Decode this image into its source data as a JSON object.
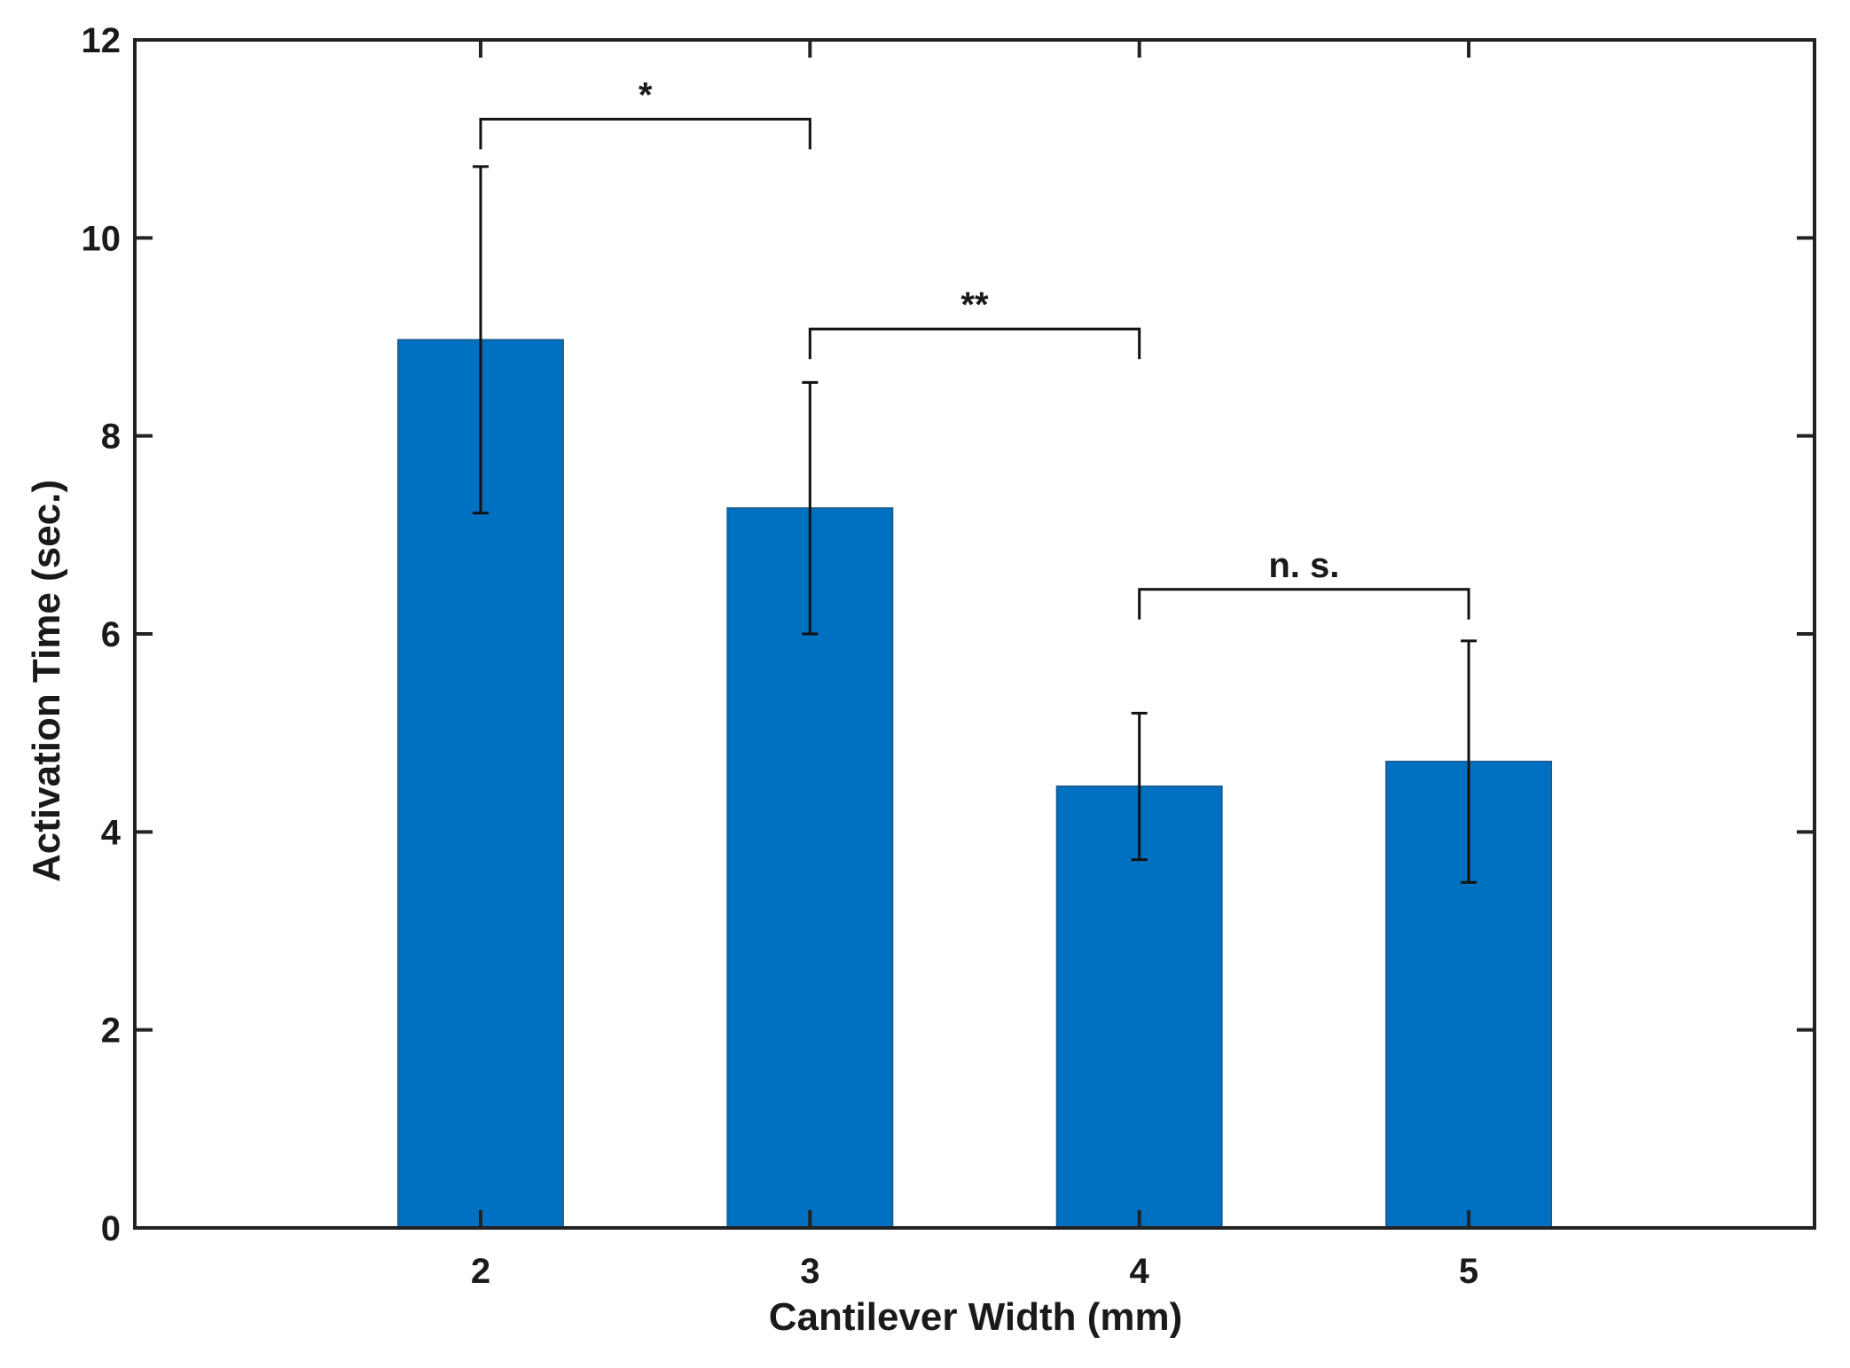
{
  "chart_data": {
    "type": "bar",
    "title": "",
    "xlabel": "Cantilever Width (mm)",
    "ylabel": "Activation Time (sec.)",
    "categories": [
      "2",
      "3",
      "4",
      "5"
    ],
    "values": [
      8.97,
      7.27,
      4.46,
      4.71
    ],
    "errors": [
      1.75,
      1.27,
      0.74,
      1.22
    ],
    "xlim": [
      0.95,
      6.05
    ],
    "ylim": [
      0,
      12
    ],
    "yticks": [
      "0",
      "2",
      "4",
      "6",
      "8",
      "10",
      "12"
    ],
    "bar_color": "#0070c0",
    "grid": false,
    "significance": [
      {
        "from": "2",
        "to": "3",
        "label": "*",
        "y": 11.2
      },
      {
        "from": "3",
        "to": "4",
        "label": "**",
        "y": 9.08
      },
      {
        "from": "4",
        "to": "5",
        "label": "n. s.",
        "y": 6.45
      }
    ]
  }
}
